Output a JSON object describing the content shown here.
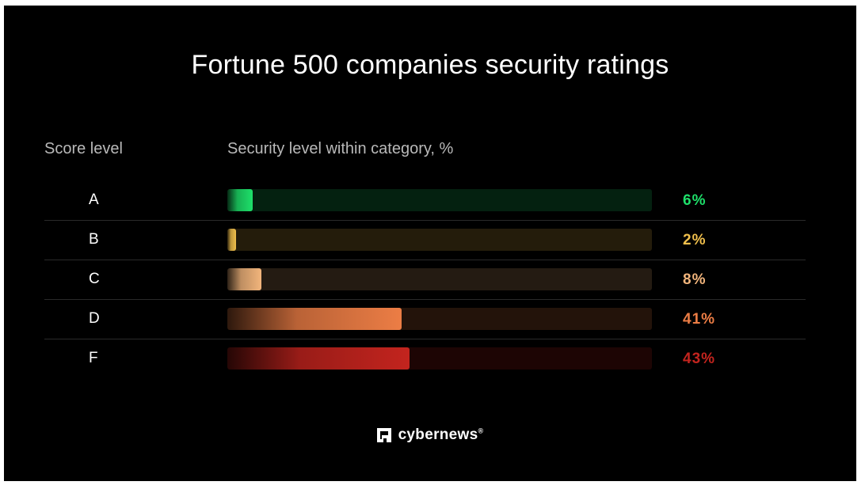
{
  "header": {
    "title": "Fortune 500 companies security ratings",
    "score_column_label": "Score level",
    "security_column_label": "Security level within category, %"
  },
  "footer": {
    "brand": "cybernews",
    "registered_mark": "®",
    "brand_icon": "cybernews-logo-icon"
  },
  "colors": {
    "A": "#1ee06a",
    "B": "#f0bf4c",
    "C": "#f2b57c",
    "D": "#ec7d45",
    "F": "#c3241e"
  },
  "chart_data": {
    "type": "bar",
    "orientation": "horizontal",
    "categories": [
      "A",
      "B",
      "C",
      "D",
      "F"
    ],
    "values": [
      6,
      2,
      8,
      41,
      43
    ],
    "value_labels": [
      "6%",
      "2%",
      "8%",
      "41%",
      "43%"
    ],
    "title": "Fortune 500 companies security ratings",
    "xlabel": "Security level within category, %",
    "ylabel": "Score level",
    "xlim": [
      0,
      100
    ],
    "grid": false,
    "legend": "none"
  }
}
